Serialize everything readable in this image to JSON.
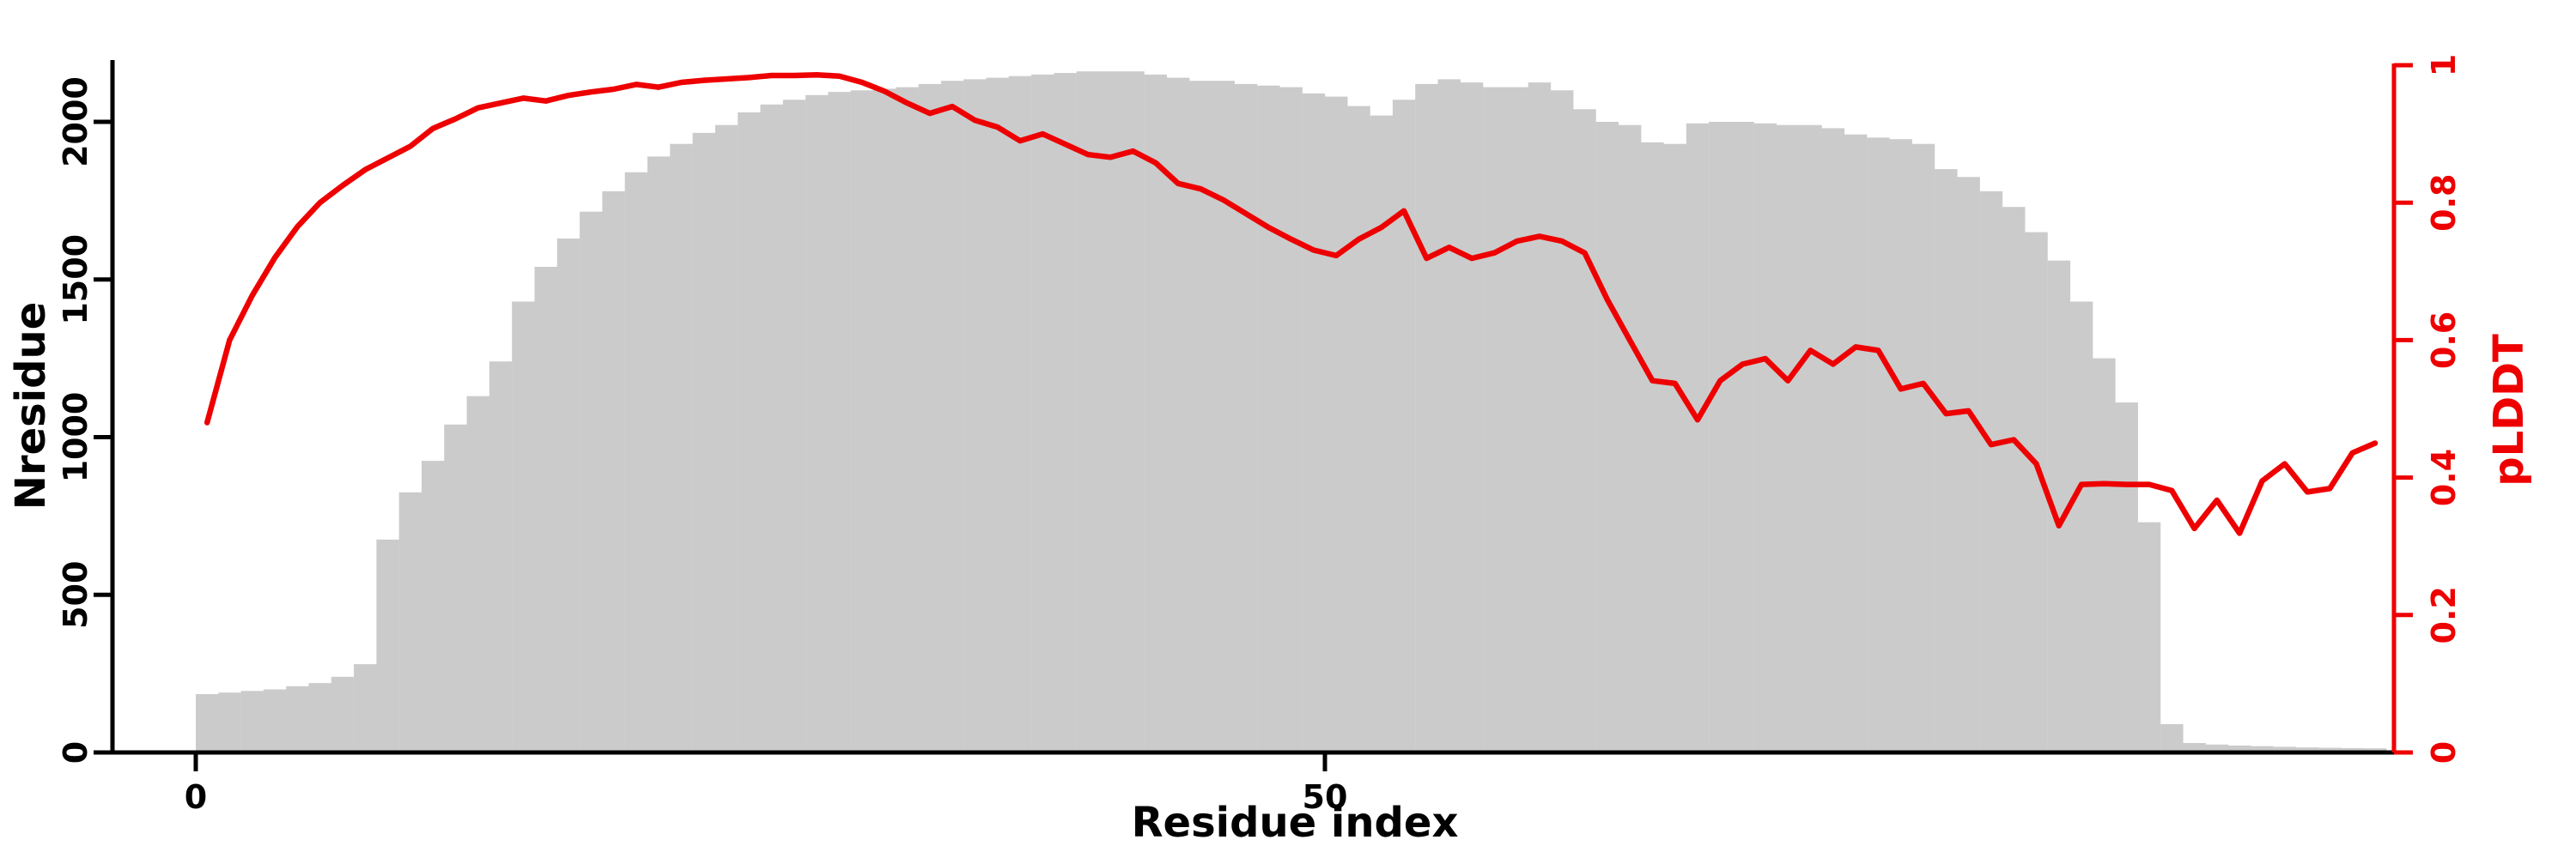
{
  "chart_data": {
    "type": "bar+line",
    "title": "",
    "xlabel": "Residue index",
    "ylabel_left": "Nresidue",
    "ylabel_right": "pLDDT",
    "legend": "none",
    "grid": false,
    "bar_color": "#cbcbcb",
    "line_color": "#ee0000",
    "axis_color": "#000000",
    "right_axis_color": "#ee0000",
    "xlim": [
      0,
      97.5
    ],
    "ylim_left": [
      0,
      2180
    ],
    "ylim_right": [
      0,
      1
    ],
    "x_tick_values": [
      0,
      50
    ],
    "x_tick_labels": [
      "0",
      "50"
    ],
    "left_tick_values": [
      0,
      500,
      1000,
      1500,
      2000
    ],
    "left_tick_labels": [
      "0",
      "500",
      "1000",
      "1500",
      "2000"
    ],
    "right_tick_values": [
      0,
      0.2,
      0.4,
      0.6,
      0.8,
      1
    ],
    "right_tick_labels": [
      "0",
      "0.2",
      "0.4",
      "0.6",
      "0.8",
      "1"
    ],
    "bars": {
      "series_name": "Nresidue",
      "x_start": 0,
      "x_step": 1,
      "values": [
        185,
        190,
        195,
        200,
        210,
        220,
        240,
        280,
        675,
        825,
        925,
        1040,
        1130,
        1240,
        1430,
        1540,
        1630,
        1715,
        1780,
        1840,
        1890,
        1930,
        1965,
        1990,
        2030,
        2055,
        2070,
        2085,
        2095,
        2100,
        2105,
        2110,
        2120,
        2130,
        2135,
        2140,
        2145,
        2150,
        2155,
        2160,
        2160,
        2160,
        2150,
        2140,
        2130,
        2130,
        2120,
        2115,
        2110,
        2090,
        2080,
        2050,
        2020,
        2070,
        2120,
        2135,
        2125,
        2110,
        2110,
        2125,
        2100,
        2040,
        2000,
        1990,
        1935,
        1930,
        1995,
        2000,
        2000,
        1995,
        1990,
        1990,
        1980,
        1960,
        1950,
        1945,
        1930,
        1850,
        1825,
        1780,
        1730,
        1650,
        1560,
        1430,
        1250,
        1110,
        730,
        90,
        30,
        25,
        22,
        20,
        18,
        16,
        15,
        14,
        13
      ]
    },
    "line": {
      "series_name": "pLDDT",
      "x_start": 1,
      "x_step": 1,
      "values": [
        0.48,
        0.6,
        0.665,
        0.72,
        0.765,
        0.8,
        0.825,
        0.848,
        0.865,
        0.882,
        0.908,
        0.922,
        0.938,
        0.945,
        0.952,
        0.948,
        0.956,
        0.961,
        0.965,
        0.972,
        0.968,
        0.975,
        0.978,
        0.98,
        0.982,
        0.985,
        0.985,
        0.986,
        0.984,
        0.975,
        0.962,
        0.945,
        0.93,
        0.94,
        0.92,
        0.91,
        0.89,
        0.9,
        0.885,
        0.87,
        0.866,
        0.875,
        0.858,
        0.828,
        0.82,
        0.804,
        0.784,
        0.764,
        0.747,
        0.731,
        0.723,
        0.747,
        0.764,
        0.788,
        0.719,
        0.735,
        0.719,
        0.727,
        0.744,
        0.751,
        0.744,
        0.727,
        0.659,
        0.6,
        0.541,
        0.537,
        0.484,
        0.541,
        0.565,
        0.573,
        0.541,
        0.585,
        0.565,
        0.59,
        0.585,
        0.529,
        0.537,
        0.493,
        0.497,
        0.448,
        0.455,
        0.42,
        0.33,
        0.39,
        0.391,
        0.39,
        0.39,
        0.381,
        0.326,
        0.367,
        0.319,
        0.395,
        0.42,
        0.379,
        0.384,
        0.436,
        0.45
      ]
    }
  }
}
